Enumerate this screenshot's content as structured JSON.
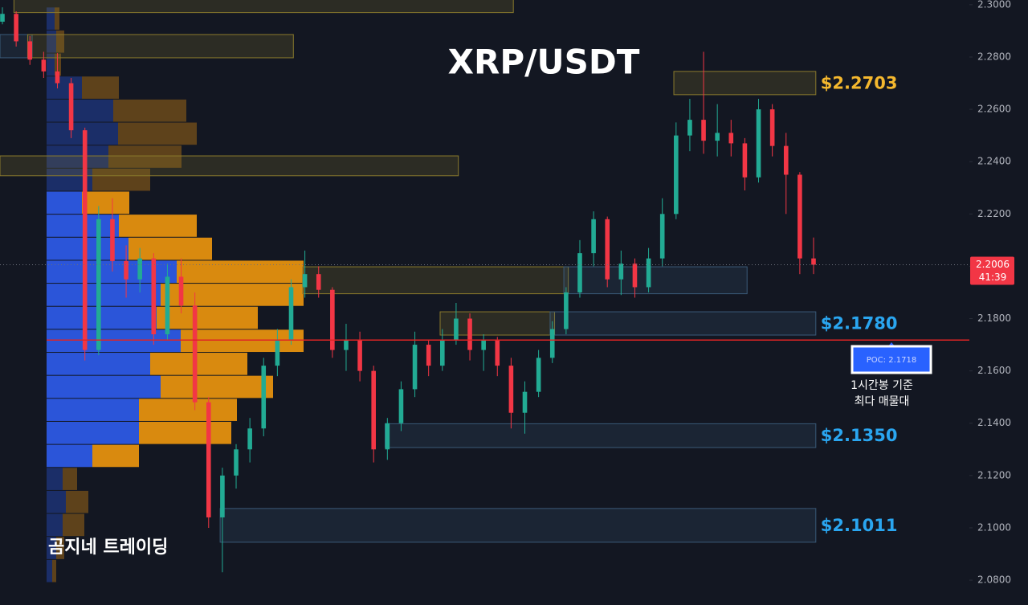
{
  "chart_data": {
    "type": "candlestick",
    "title": "XRP/USDT",
    "watermark": "곰지네 트레이딩",
    "ylim": [
      2.0705,
      2.3018
    ],
    "yticks": [
      {
        "value": 2.3,
        "label": "2.3000"
      },
      {
        "value": 2.28,
        "label": "2.2800"
      },
      {
        "value": 2.26,
        "label": "2.2600"
      },
      {
        "value": 2.24,
        "label": "2.2400"
      },
      {
        "value": 2.22,
        "label": "2.2200"
      },
      {
        "value": 2.2,
        "label": "2.2000"
      },
      {
        "value": 2.18,
        "label": "2.1800"
      },
      {
        "value": 2.16,
        "label": "2.1600"
      },
      {
        "value": 2.14,
        "label": "2.1400"
      },
      {
        "value": 2.12,
        "label": "2.1200"
      },
      {
        "value": 2.1,
        "label": "2.1000"
      },
      {
        "value": 2.08,
        "label": "2.0800"
      }
    ],
    "up_color": "#22ab94",
    "down_color": "#f23645",
    "candles": {
      "open": [
        2.2935,
        2.2965,
        2.286,
        2.279,
        2.2745,
        2.27,
        2.252,
        2.168,
        2.218,
        2.202,
        2.195,
        2.203,
        2.174,
        2.196,
        2.185,
        2.148,
        2.104,
        2.12,
        2.13,
        2.138,
        2.162,
        2.172,
        2.192,
        2.197,
        2.191,
        2.168,
        2.172,
        2.16,
        2.13,
        2.14,
        2.153,
        2.17,
        2.162,
        2.172,
        2.18,
        2.168,
        2.172,
        2.162,
        2.144,
        2.152,
        2.165,
        2.176,
        2.19,
        2.205,
        2.218,
        2.195,
        2.201,
        2.192,
        2.203,
        2.22,
        2.25,
        2.256,
        2.248,
        2.251,
        2.247,
        2.234,
        2.26,
        2.246,
        2.235,
        2.203
      ],
      "high": [
        2.299,
        2.2975,
        2.288,
        2.282,
        2.2815,
        2.272,
        2.253,
        2.223,
        2.226,
        2.208,
        2.207,
        2.205,
        2.201,
        2.203,
        2.19,
        2.15,
        2.123,
        2.132,
        2.142,
        2.165,
        2.176,
        2.195,
        2.206,
        2.2,
        2.192,
        2.178,
        2.175,
        2.162,
        2.142,
        2.156,
        2.175,
        2.172,
        2.176,
        2.186,
        2.182,
        2.174,
        2.173,
        2.165,
        2.156,
        2.168,
        2.179,
        2.192,
        2.21,
        2.221,
        2.219,
        2.206,
        2.203,
        2.207,
        2.226,
        2.255,
        2.264,
        2.282,
        2.262,
        2.256,
        2.249,
        2.264,
        2.262,
        2.251,
        2.236,
        2.211
      ],
      "low": [
        2.2925,
        2.284,
        2.277,
        2.272,
        2.268,
        2.249,
        2.164,
        2.166,
        2.198,
        2.188,
        2.19,
        2.17,
        2.172,
        2.182,
        2.145,
        2.1,
        2.083,
        2.115,
        2.125,
        2.135,
        2.158,
        2.17,
        2.188,
        2.188,
        2.165,
        2.16,
        2.156,
        2.125,
        2.126,
        2.137,
        2.15,
        2.158,
        2.16,
        2.17,
        2.164,
        2.16,
        2.158,
        2.138,
        2.136,
        2.15,
        2.163,
        2.174,
        2.188,
        2.2,
        2.192,
        2.189,
        2.188,
        2.19,
        2.2,
        2.218,
        2.244,
        2.243,
        2.242,
        2.242,
        2.229,
        2.232,
        2.242,
        2.22,
        2.197,
        2.197
      ],
      "close": [
        2.2965,
        2.286,
        2.279,
        2.2745,
        2.27,
        2.252,
        2.168,
        2.218,
        2.202,
        2.195,
        2.203,
        2.174,
        2.196,
        2.185,
        2.148,
        2.104,
        2.12,
        2.13,
        2.138,
        2.162,
        2.172,
        2.192,
        2.197,
        2.191,
        2.168,
        2.172,
        2.16,
        2.13,
        2.14,
        2.153,
        2.17,
        2.162,
        2.172,
        2.18,
        2.168,
        2.172,
        2.162,
        2.144,
        2.152,
        2.165,
        2.176,
        2.19,
        2.205,
        2.218,
        2.195,
        2.201,
        2.192,
        2.203,
        2.22,
        2.25,
        2.256,
        2.248,
        2.251,
        2.247,
        2.234,
        2.26,
        2.246,
        2.235,
        2.203,
        2.2006
      ]
    },
    "profile": {
      "bins": [
        2.2991,
        2.2903,
        2.2815,
        2.2727,
        2.2639,
        2.2551,
        2.2463,
        2.2375,
        2.2287,
        2.2199,
        2.2111,
        2.2023,
        2.1935,
        2.1847,
        2.1759,
        2.1671,
        2.1583,
        2.1495,
        2.1407,
        2.1319,
        2.1231,
        2.1143,
        2.1055,
        2.0967,
        2.0879,
        2.0791
      ],
      "buy": [
        10,
        12,
        10,
        44,
        83,
        89,
        77,
        57,
        44,
        90,
        102,
        162,
        142,
        137,
        167,
        129,
        142,
        115,
        115,
        57,
        20,
        24,
        20,
        12,
        7
      ],
      "sell": [
        6,
        10,
        8,
        46,
        91,
        98,
        91,
        72,
        59,
        97,
        104,
        158,
        178,
        126,
        153,
        121,
        140,
        122,
        115,
        58,
        18,
        28,
        27,
        10,
        5
      ],
      "buy_color": "#2b55d9",
      "sell_color": "#d98a0f",
      "value_area": [
        2.1231,
        2.2287
      ]
    },
    "zones": [
      {
        "from": 1,
        "to": 37,
        "top": 2.304,
        "bottom": 2.297,
        "color": "#8a7a2c"
      },
      {
        "from": 0,
        "to": 2,
        "top": 2.2886,
        "bottom": 2.2797,
        "color": "#3a5a78"
      },
      {
        "from": 2,
        "to": 21,
        "top": 2.2886,
        "bottom": 2.2797,
        "color": "#8a7a2c"
      },
      {
        "from": 0,
        "to": 33,
        "top": 2.2422,
        "bottom": 2.2346,
        "color": "#8a7a2c"
      },
      {
        "from": 49,
        "to": 59,
        "top": 2.2745,
        "bottom": 2.2656,
        "color": "#8a7a2c",
        "label": "$2.2703",
        "label_color": "#f5b82e"
      },
      {
        "from": 22,
        "to": 41,
        "top": 2.1998,
        "bottom": 2.1895,
        "color": "#8a7a2c"
      },
      {
        "from": 41,
        "to": 54,
        "top": 2.1998,
        "bottom": 2.1895,
        "color": "#3a5a78"
      },
      {
        "from": 32,
        "to": 40,
        "top": 2.1826,
        "bottom": 2.1737,
        "color": "#8a7a2c"
      },
      {
        "from": 40,
        "to": 59,
        "top": 2.1826,
        "bottom": 2.1737,
        "color": "#3a5a78",
        "label": "$2.1780",
        "label_color": "#2aa6f0"
      },
      {
        "from": 28,
        "to": 59,
        "top": 2.1398,
        "bottom": 2.1307,
        "color": "#3a5a78",
        "label": "$2.1350",
        "label_color": "#2aa6f0"
      },
      {
        "from": 16,
        "to": 59,
        "top": 2.1074,
        "bottom": 2.0945,
        "color": "#3a5a78",
        "label": "$2.1011",
        "label_color": "#2aa6f0"
      }
    ],
    "poc": {
      "value": 2.1718,
      "label": "POC: 2.1718",
      "color": "#e02424"
    },
    "annotation": [
      "1시간봉 기준",
      "최다 매물대"
    ],
    "last_price": {
      "value": 2.2006,
      "countdown": "41:39"
    }
  }
}
